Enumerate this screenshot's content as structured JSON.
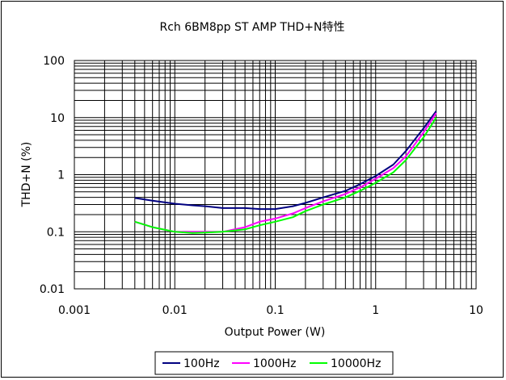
{
  "chart_data": {
    "type": "line",
    "title": "Rch  6BM8pp ST AMP THD+N特性",
    "xlabel": "Output Power (W)",
    "ylabel": "THD+N (%)",
    "x_scale": "log",
    "y_scale": "log",
    "xlim": [
      0.001,
      10
    ],
    "ylim": [
      0.01,
      100
    ],
    "x_ticks": [
      "0.001",
      "0.01",
      "0.1",
      "1",
      "10"
    ],
    "y_ticks": [
      "0.01",
      "0.1",
      "1",
      "10",
      "100"
    ],
    "grid": true,
    "legend_position": "bottom",
    "series": [
      {
        "name": "100Hz",
        "color": "#000080",
        "x": [
          0.004,
          0.006,
          0.01,
          0.015,
          0.02,
          0.03,
          0.05,
          0.07,
          0.1,
          0.15,
          0.2,
          0.3,
          0.5,
          0.7,
          1,
          1.5,
          2,
          3,
          4
        ],
        "y": [
          0.39,
          0.35,
          0.31,
          0.29,
          0.28,
          0.26,
          0.26,
          0.25,
          0.25,
          0.28,
          0.32,
          0.4,
          0.52,
          0.68,
          0.95,
          1.5,
          2.6,
          6.5,
          13
        ]
      },
      {
        "name": "1000Hz",
        "color": "#ff00ff",
        "x": [
          0.004,
          0.006,
          0.01,
          0.015,
          0.02,
          0.03,
          0.05,
          0.07,
          0.1,
          0.15,
          0.2,
          0.3,
          0.5,
          0.7,
          1,
          1.5,
          2,
          3,
          4
        ],
        "y": [
          0.15,
          0.12,
          0.1,
          0.1,
          0.1,
          0.1,
          0.12,
          0.15,
          0.17,
          0.21,
          0.26,
          0.34,
          0.46,
          0.6,
          0.85,
          1.3,
          2.1,
          5.5,
          12
        ]
      },
      {
        "name": "10000Hz",
        "color": "#00ff00",
        "x": [
          0.004,
          0.006,
          0.01,
          0.015,
          0.02,
          0.03,
          0.05,
          0.07,
          0.1,
          0.15,
          0.2,
          0.3,
          0.5,
          0.7,
          1,
          1.5,
          2,
          3,
          4
        ],
        "y": [
          0.15,
          0.12,
          0.1,
          0.095,
          0.097,
          0.1,
          0.11,
          0.13,
          0.15,
          0.18,
          0.23,
          0.3,
          0.4,
          0.52,
          0.72,
          1.1,
          1.8,
          4.5,
          10
        ]
      }
    ]
  }
}
